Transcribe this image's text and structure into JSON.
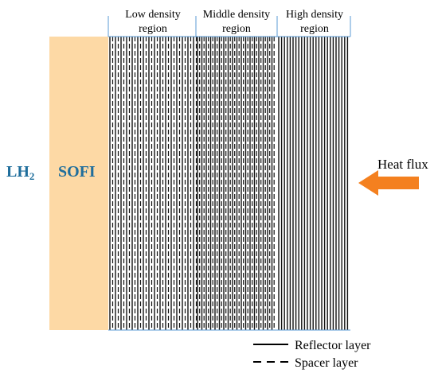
{
  "regions": [
    {
      "lines": [
        "Low density",
        "region"
      ]
    },
    {
      "lines": [
        "Middle density",
        "region"
      ]
    },
    {
      "lines": [
        "High density",
        "region"
      ]
    }
  ],
  "inner": {
    "label": "LH",
    "subscript": "2"
  },
  "insulation": {
    "label": "SOFI"
  },
  "arrow": {
    "label": "Heat flux"
  },
  "legend": [
    {
      "label": "Reflector layer"
    },
    {
      "label": "Spacer layer"
    }
  ]
}
